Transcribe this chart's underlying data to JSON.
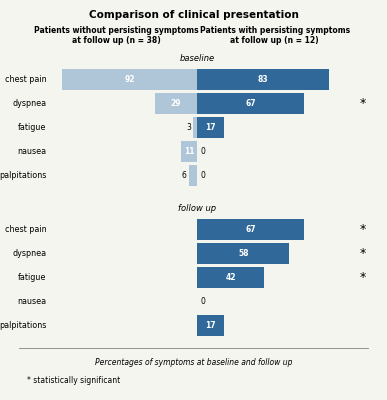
{
  "title": "Comparison of clinical presentation",
  "header_left": "Patients without persisting symptoms\nat follow up (n = 38)",
  "header_right": "Patients with persisting symptoms\nat follow up (n = 12)",
  "section1_label": "baseline",
  "section2_label": "follow up",
  "baseline_categories": [
    "chest pain",
    "dyspnea",
    "fatigue",
    "nausea",
    "palpitations"
  ],
  "baseline_left": [
    92,
    29,
    3,
    11,
    6
  ],
  "baseline_right": [
    83,
    67,
    17,
    0,
    0
  ],
  "followup_categories": [
    "chest pain",
    "dyspnea",
    "fatigue",
    "nausea",
    "palpitations"
  ],
  "followup_right": [
    67,
    58,
    42,
    0,
    17
  ],
  "color_left": "#aec6d8",
  "color_right": "#2f6899",
  "star_rows_baseline": [
    1
  ],
  "star_rows_followup": [
    0,
    1,
    2
  ],
  "xlabel": "Percentages of symptoms at baseline and follow up",
  "footnote": "* statistically significant",
  "bg_color": "#f5f5f0",
  "max_val": 100
}
